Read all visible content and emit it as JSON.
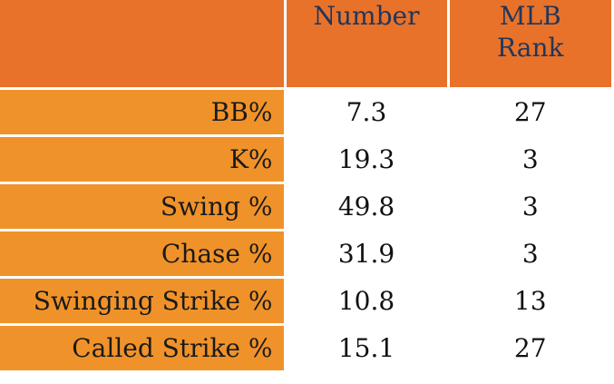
{
  "header": {
    "corner": "",
    "number": "Number",
    "rank_line1": "MLB",
    "rank_line2": "Rank"
  },
  "rows": [
    {
      "label": "BB%",
      "number": "7.3",
      "rank": "27"
    },
    {
      "label": "K%",
      "number": "19.3",
      "rank": "3"
    },
    {
      "label": "Swing %",
      "number": "49.8",
      "rank": "3"
    },
    {
      "label": "Chase %",
      "number": "31.9",
      "rank": "3"
    },
    {
      "label": "Swinging Strike %",
      "number": "10.8",
      "rank": "13"
    },
    {
      "label": "Called Strike %",
      "number": "15.1",
      "rank": "27"
    }
  ],
  "colors": {
    "header_bg": "#e8722a",
    "label_bg": "#f0922a",
    "header_text": "#22365a"
  }
}
